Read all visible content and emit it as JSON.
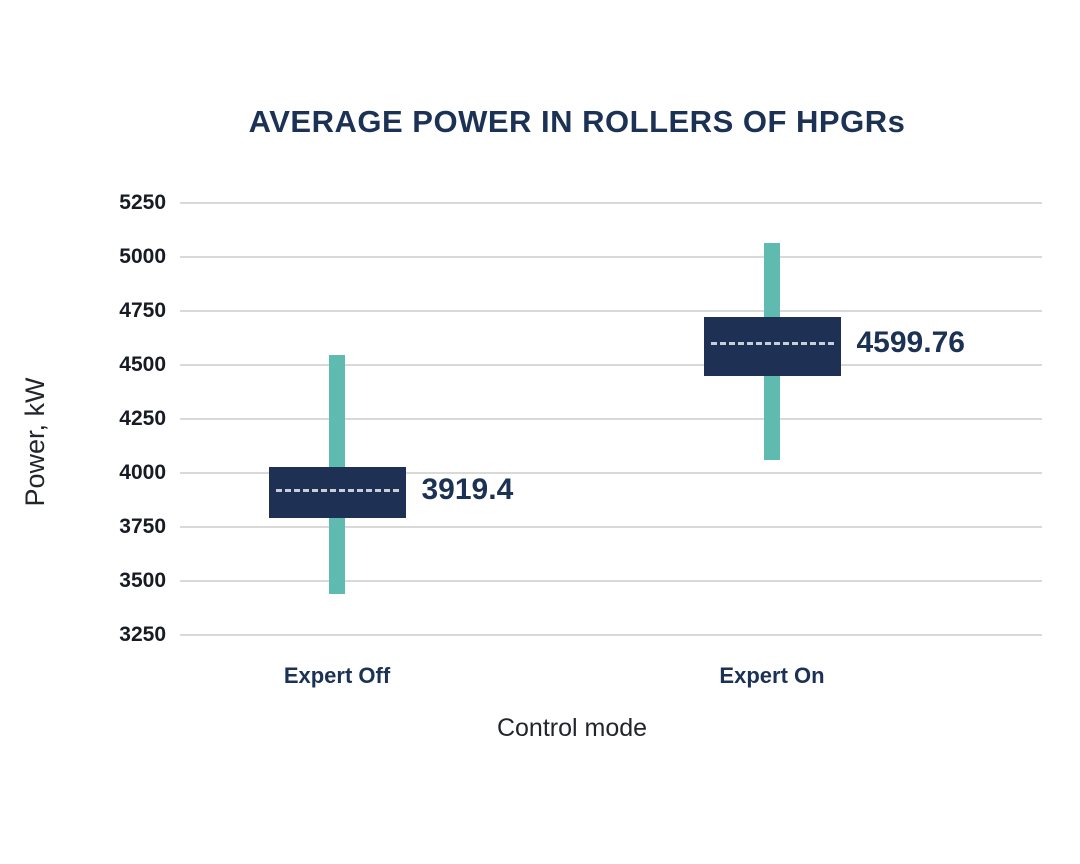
{
  "title": "AVERAGE POWER IN ROLLERS OF HPGRs",
  "colors": {
    "navy_box": "#1e3054",
    "navy_text": "#1c3254",
    "teal_whisker": "#5fbab0",
    "gridline": "#d9d9d9",
    "tick_text": "#181b24",
    "axis_title_text": "#22252c",
    "mean_dash": "#c9cfd9",
    "background": "#ffffff"
  },
  "chart_data": {
    "type": "boxplot",
    "title": "AVERAGE POWER IN ROLLERS OF HPGRs",
    "xlabel": "Control mode",
    "ylabel": "Power, kW",
    "ylim": [
      3250,
      5250
    ],
    "y_ticks": [
      5250,
      5000,
      4750,
      4500,
      4250,
      4000,
      3750,
      3500,
      3250
    ],
    "grid": true,
    "legend": false,
    "categories": [
      "Expert Off",
      "Expert On"
    ],
    "series": [
      {
        "category": "Expert Off",
        "whisker_high": 4545,
        "box_high": 4030,
        "mean": 3919.4,
        "box_low": 3790,
        "whisker_low": 3440,
        "label": "3919.4"
      },
      {
        "category": "Expert On",
        "whisker_high": 5065,
        "box_high": 4720,
        "mean": 4599.76,
        "box_low": 4450,
        "whisker_low": 4060,
        "label": "4599.76"
      }
    ]
  }
}
